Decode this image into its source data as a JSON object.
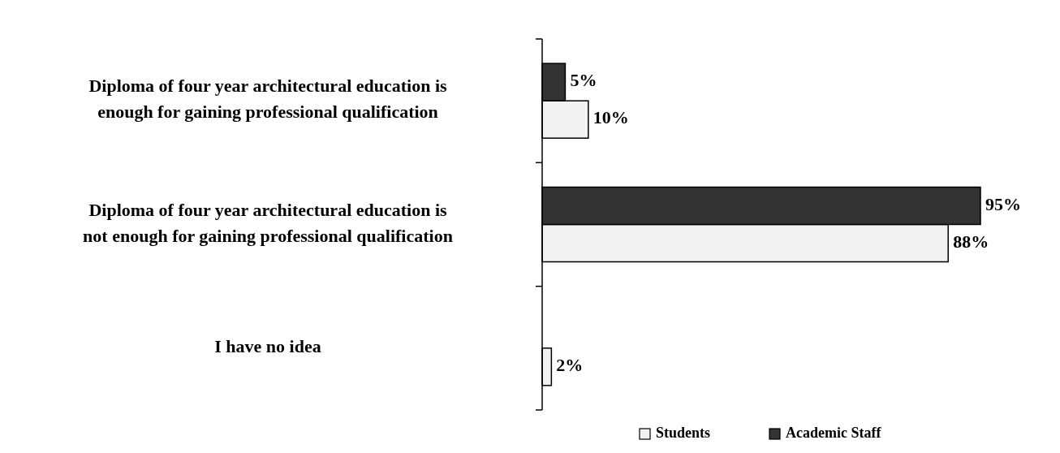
{
  "chart_data": {
    "type": "bar",
    "orientation": "horizontal",
    "categories": [
      "Diploma of four year architectural education is enough for gaining professional qualification",
      "Diploma of four year architectural education is not enough for gaining professional qualification",
      "I have no idea"
    ],
    "series": [
      {
        "name": "Students",
        "color": "#f2f2f2",
        "values": [
          10,
          88,
          2
        ],
        "value_labels": [
          "10%",
          "88%",
          "2%"
        ]
      },
      {
        "name": "Academic Staff",
        "color": "#333333",
        "values": [
          5,
          95,
          null
        ],
        "value_labels": [
          "5%",
          "95%",
          null
        ]
      }
    ],
    "legend": "bottom"
  }
}
